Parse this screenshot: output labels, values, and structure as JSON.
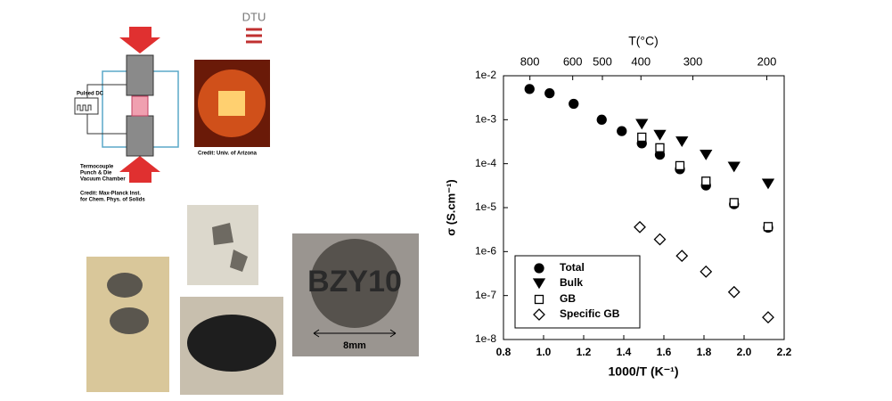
{
  "images": {
    "dtu_logo": "DTU",
    "arizona_credit": "Credit: Univ. of Arizona",
    "pulsed_dc": "Pulsed DC",
    "sps_labels": [
      "Termocouple",
      "Punch & Die",
      "Vacuum Chamber"
    ],
    "mpi_credit": [
      "Credit: Max-Planck Inst.",
      "for Chem. Phys. of Solids"
    ],
    "sample_text": "BZY10",
    "scale_text": "8mm"
  },
  "chart_data": {
    "type": "scatter",
    "xlabel": "1000/T (K⁻¹)",
    "ylabel": "σ (S.cm⁻¹)",
    "x2label": "T(°C)",
    "xlim": [
      0.8,
      2.2
    ],
    "xticks": [
      0.8,
      {
        "value": 1.0,
        "label": "1.0"
      },
      1.2,
      1.4,
      1.6,
      1.8,
      {
        "value": 2.0,
        "label": "2.0"
      },
      2.2
    ],
    "x2ticks": [
      800,
      600,
      500,
      400,
      300,
      200
    ],
    "ylim": [
      1e-08,
      0.01
    ],
    "yscale": "log",
    "yticks": [
      {
        "value": 1e-08,
        "label": "1e-8"
      },
      {
        "value": 1e-07,
        "label": "1e-7"
      },
      {
        "value": 1e-06,
        "label": "1e-6"
      },
      {
        "value": 1e-05,
        "label": "1e-5"
      },
      {
        "value": 0.0001,
        "label": "1e-4"
      },
      {
        "value": 0.001,
        "label": "1e-3"
      },
      {
        "value": 0.01,
        "label": "1e-2"
      }
    ],
    "legend": "lower left",
    "series": [
      {
        "name": "Total",
        "color": "#000000",
        "marker": "circle",
        "filled": true,
        "x": [
          0.93,
          1.03,
          1.15,
          1.29,
          1.39,
          1.49,
          1.58,
          1.68,
          1.81,
          1.95,
          2.12
        ],
        "values": [
          0.005,
          0.004,
          0.0023,
          0.001,
          0.00055,
          0.00029,
          0.00016,
          7.5e-05,
          3.2e-05,
          1.2e-05,
          3.5e-06
        ]
      },
      {
        "name": "Bulk",
        "color": "#000000",
        "marker": "triangle-down",
        "filled": true,
        "x": [
          1.49,
          1.58,
          1.69,
          1.81,
          1.95,
          2.12
        ],
        "values": [
          0.0008,
          0.00045,
          0.00032,
          0.00016,
          8.5e-05,
          3.5e-05
        ]
      },
      {
        "name": "GB",
        "color": "#000000",
        "marker": "square",
        "filled": false,
        "x": [
          1.49,
          1.58,
          1.68,
          1.81,
          1.95,
          2.12
        ],
        "values": [
          0.0004,
          0.00023,
          9e-05,
          4e-05,
          1.3e-05,
          3.7e-06
        ]
      },
      {
        "name": "Specific GB",
        "color": "#000000",
        "marker": "diamond",
        "filled": false,
        "x": [
          1.48,
          1.58,
          1.69,
          1.81,
          1.95,
          2.12
        ],
        "values": [
          3.6e-06,
          1.9e-06,
          8e-07,
          3.5e-07,
          1.2e-07,
          3.2e-08
        ]
      }
    ]
  }
}
